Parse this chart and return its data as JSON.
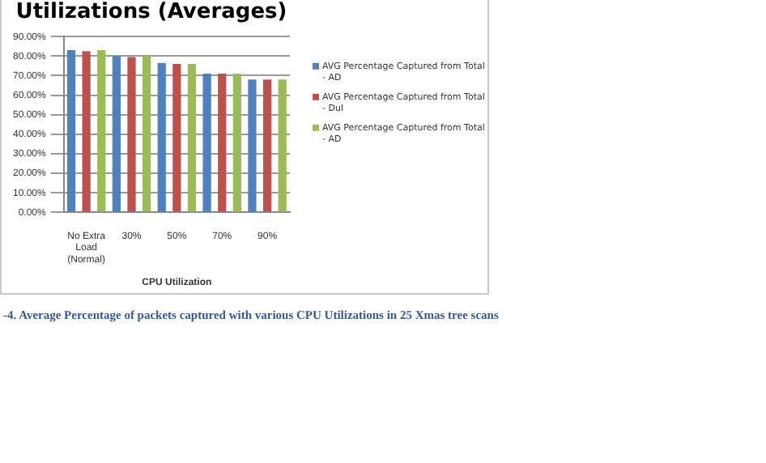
{
  "chart_data": {
    "type": "bar",
    "title": "Utilizations (Averages)",
    "xlabel": "CPU Utilization",
    "categories": [
      "No Extra Load (Normal)",
      "30%",
      "50%",
      "70%",
      "90%"
    ],
    "series": [
      {
        "name": "AVG Percentage Captured from Total - AD",
        "color": "#4f81bd",
        "values": [
          83,
          80,
          76.5,
          71,
          68
        ]
      },
      {
        "name": "AVG Percentage Captured from Total - Dul",
        "color": "#c0504d",
        "values": [
          82.5,
          79.5,
          76,
          71,
          68
        ]
      },
      {
        "name": "AVG Percentage Captured from Total - AD",
        "color": "#9bbb59",
        "values": [
          83,
          80,
          76,
          71,
          68
        ]
      }
    ],
    "ylim": [
      0,
      90
    ],
    "yticks": [
      {
        "value": 0,
        "label": "0.00%"
      },
      {
        "value": 10,
        "label": "10.00%"
      },
      {
        "value": 20,
        "label": "20.00%"
      },
      {
        "value": 30,
        "label": "30.00%"
      },
      {
        "value": 40,
        "label": "40.00%"
      },
      {
        "value": 50,
        "label": "50.00%"
      },
      {
        "value": 60,
        "label": "60.00%"
      },
      {
        "value": 70,
        "label": "70.00%"
      },
      {
        "value": 80,
        "label": "80.00%"
      },
      {
        "value": 90,
        "label": "90.00%"
      }
    ],
    "grid": "y",
    "legend": "right",
    "annotations": [
      "-4. Average Percentage of packets captured with various CPU Utilizations in 25 Xmas tree scans"
    ]
  }
}
